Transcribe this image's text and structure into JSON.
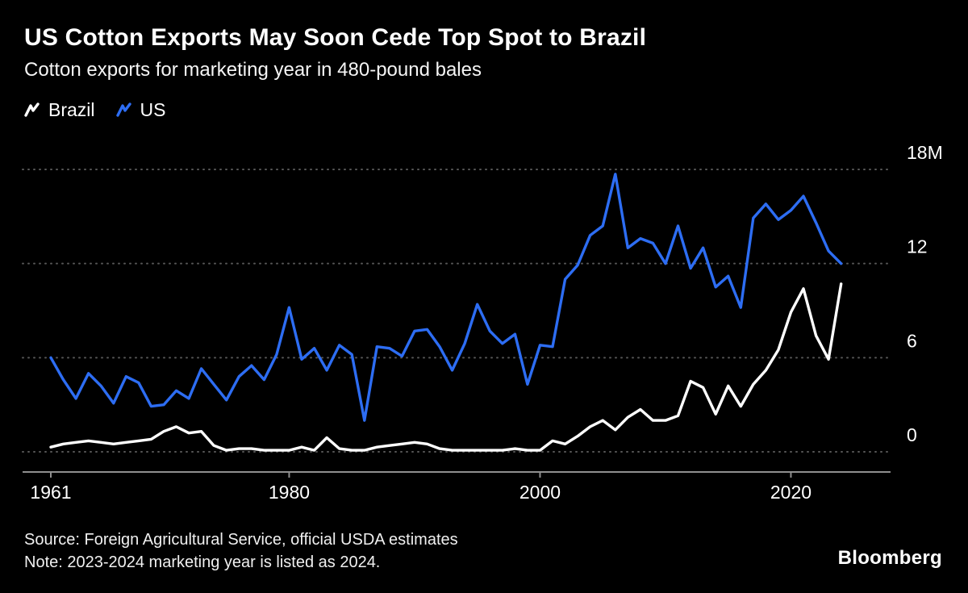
{
  "header": {
    "title": "US Cotton Exports May Soon Cede Top Spot to Brazil",
    "subtitle": "Cotton exports for marketing year in 480-pound bales"
  },
  "footer": {
    "source": "Source: Foreign Agricultural Service, official USDA estimates",
    "note": "Note: 2023-2024 marketing year is listed as 2024.",
    "brand": "Bloomberg"
  },
  "colors": {
    "background": "#000000",
    "brazil_line": "#ffffff",
    "us_line": "#2d6df3",
    "gridline": "#575757",
    "axis": "#8f8f8f"
  },
  "chart_data": {
    "type": "line",
    "title": "US Cotton Exports May Soon Cede Top Spot to Brazil",
    "subtitle": "Cotton exports for marketing year in 480-pound bales",
    "unit": "million 480-pound bales",
    "grid": "horizontal-dotted",
    "legend_position": "top-left",
    "ylim": [
      0,
      18
    ],
    "y_ticks": [
      {
        "value": 0,
        "label": "0"
      },
      {
        "value": 6,
        "label": "6"
      },
      {
        "value": 12,
        "label": "12"
      },
      {
        "value": 18,
        "label": "18M"
      }
    ],
    "x_ticks": [
      {
        "value": 1961,
        "label": "1961"
      },
      {
        "value": 1980,
        "label": "1980"
      },
      {
        "value": 2000,
        "label": "2000"
      },
      {
        "value": 2020,
        "label": "2020"
      }
    ],
    "x": [
      1961,
      1962,
      1963,
      1964,
      1965,
      1966,
      1967,
      1968,
      1969,
      1970,
      1971,
      1972,
      1973,
      1974,
      1975,
      1976,
      1977,
      1978,
      1979,
      1980,
      1981,
      1982,
      1983,
      1984,
      1985,
      1986,
      1987,
      1988,
      1989,
      1990,
      1991,
      1992,
      1993,
      1994,
      1995,
      1996,
      1997,
      1998,
      1999,
      2000,
      2001,
      2002,
      2003,
      2004,
      2005,
      2006,
      2007,
      2008,
      2009,
      2010,
      2011,
      2012,
      2013,
      2014,
      2015,
      2016,
      2017,
      2018,
      2019,
      2020,
      2021,
      2022,
      2023,
      2024
    ],
    "series": [
      {
        "name": "Brazil",
        "color": "#ffffff",
        "values": [
          0.3,
          0.5,
          0.6,
          0.7,
          0.6,
          0.5,
          0.6,
          0.7,
          0.8,
          1.3,
          1.6,
          1.2,
          1.3,
          0.4,
          0.1,
          0.2,
          0.2,
          0.1,
          0.1,
          0.1,
          0.3,
          0.1,
          0.9,
          0.2,
          0.1,
          0.1,
          0.3,
          0.4,
          0.5,
          0.6,
          0.5,
          0.2,
          0.1,
          0.1,
          0.1,
          0.1,
          0.1,
          0.2,
          0.1,
          0.1,
          0.7,
          0.5,
          1.0,
          1.6,
          2.0,
          1.4,
          2.2,
          2.7,
          2.0,
          2.0,
          2.3,
          4.5,
          4.1,
          2.4,
          4.2,
          2.9,
          4.3,
          5.2,
          6.5,
          8.9,
          10.4,
          7.4,
          5.9,
          10.7
        ]
      },
      {
        "name": "US",
        "color": "#2d6df3",
        "values": [
          6.0,
          4.6,
          3.4,
          5.0,
          4.2,
          3.1,
          4.8,
          4.4,
          2.9,
          3.0,
          3.9,
          3.4,
          5.3,
          4.3,
          3.3,
          4.8,
          5.5,
          4.6,
          6.2,
          9.2,
          5.9,
          6.6,
          5.2,
          6.8,
          6.2,
          2.0,
          6.7,
          6.6,
          6.1,
          7.7,
          7.8,
          6.7,
          5.2,
          6.9,
          9.4,
          7.7,
          6.9,
          7.5,
          4.3,
          6.8,
          6.7,
          11.0,
          11.9,
          13.8,
          14.4,
          17.7,
          13.0,
          13.6,
          13.3,
          12.0,
          14.4,
          11.7,
          13.0,
          10.5,
          11.2,
          9.2,
          14.9,
          15.8,
          14.8,
          15.4,
          16.3,
          14.6,
          12.8,
          12.0
        ]
      }
    ]
  }
}
